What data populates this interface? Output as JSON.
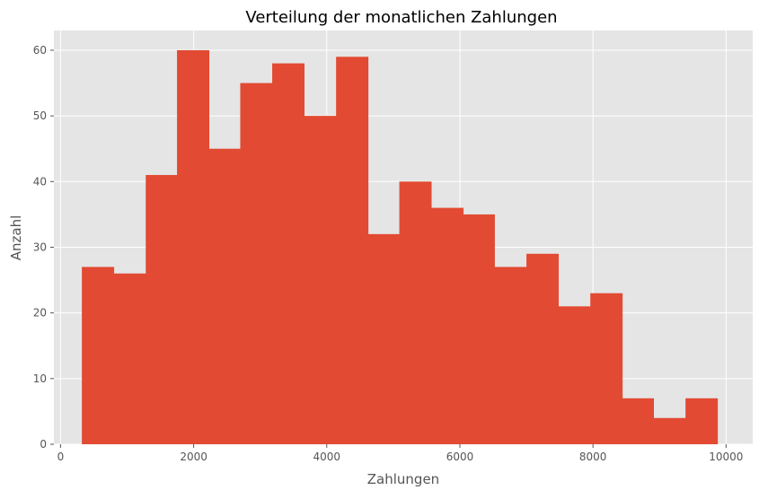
{
  "chart_data": {
    "type": "bar",
    "title": "Verteilung der monatlichen Zahlungen",
    "xlabel": "Zahlungen",
    "ylabel": "Anzahl",
    "xlim": [
      -100,
      10400
    ],
    "ylim": [
      0,
      63
    ],
    "x_ticks": [
      0,
      2000,
      4000,
      6000,
      8000,
      10000
    ],
    "y_ticks": [
      0,
      10,
      20,
      30,
      40,
      50,
      60
    ],
    "grid": true,
    "legend": "none",
    "bin_edges": [
      320,
      800,
      1280,
      1750,
      2230,
      2700,
      3180,
      3660,
      4140,
      4620,
      5090,
      5570,
      6050,
      6520,
      7000,
      7480,
      7960,
      8440,
      8910,
      9390,
      9870
    ],
    "values": [
      27,
      26,
      41,
      60,
      45,
      55,
      58,
      50,
      59,
      32,
      40,
      36,
      35,
      27,
      29,
      21,
      23,
      7,
      4,
      7
    ],
    "colors": {
      "bar": "#E24A33",
      "plot_background": "#E5E5E5",
      "grid": "#FFFFFF",
      "text": "#555555",
      "title": "#000000"
    }
  }
}
